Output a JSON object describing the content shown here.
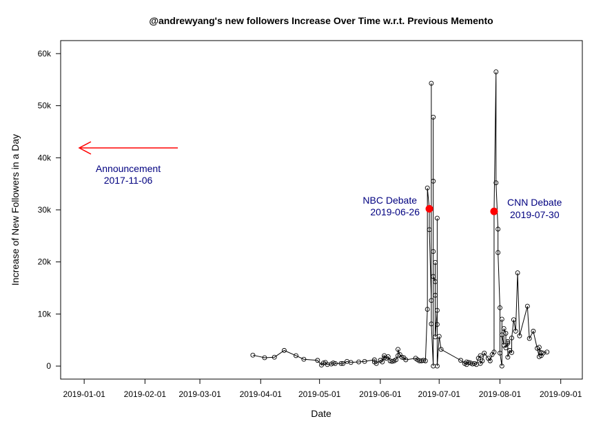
{
  "chart_data": {
    "type": "line",
    "title": "@andrewyang's new followers Increase Over Time w.r.t. Previous Memento",
    "xlabel": "Date",
    "ylabel": "Increase of New Followers in a Day",
    "x_axis": {
      "kind": "date",
      "range": [
        "2018-12-20",
        "2019-09-12"
      ],
      "ticks": [
        "2019-01-01",
        "2019-02-01",
        "2019-03-01",
        "2019-04-01",
        "2019-05-01",
        "2019-06-01",
        "2019-07-01",
        "2019-08-01",
        "2019-09-01"
      ]
    },
    "y_axis": {
      "range": [
        -2500,
        62500
      ],
      "ticks": [
        0,
        10000,
        20000,
        30000,
        40000,
        50000,
        60000
      ],
      "tick_labels": [
        "0",
        "10k",
        "20k",
        "30k",
        "40k",
        "50k",
        "60k"
      ]
    },
    "grid": false,
    "series": [
      {
        "marker": "open-circle",
        "color": "#000000",
        "points": [
          [
            "2019-03-28",
            2100
          ],
          [
            "2019-04-03",
            1600
          ],
          [
            "2019-04-08",
            1700
          ],
          [
            "2019-04-13",
            3000
          ],
          [
            "2019-04-19",
            2000
          ],
          [
            "2019-04-23",
            1300
          ],
          [
            "2019-04-30",
            1100
          ],
          [
            "2019-05-02",
            200
          ],
          [
            "2019-05-03",
            600
          ],
          [
            "2019-05-04",
            700
          ],
          [
            "2019-05-05",
            300
          ],
          [
            "2019-05-07",
            400
          ],
          [
            "2019-05-08",
            600
          ],
          [
            "2019-05-09",
            500
          ],
          [
            "2019-05-12",
            500
          ],
          [
            "2019-05-13",
            500
          ],
          [
            "2019-05-15",
            900
          ],
          [
            "2019-05-17",
            700
          ],
          [
            "2019-05-21",
            800
          ],
          [
            "2019-05-24",
            900
          ],
          [
            "2019-05-29",
            1200
          ],
          [
            "2019-05-29",
            800
          ],
          [
            "2019-05-30",
            500
          ],
          [
            "2019-06-01",
            1100
          ],
          [
            "2019-06-02",
            800
          ],
          [
            "2019-06-03",
            2000
          ],
          [
            "2019-06-03",
            1600
          ],
          [
            "2019-06-04",
            1500
          ],
          [
            "2019-06-05",
            1800
          ],
          [
            "2019-06-06",
            1000
          ],
          [
            "2019-06-07",
            900
          ],
          [
            "2019-06-08",
            1000
          ],
          [
            "2019-06-09",
            1200
          ],
          [
            "2019-06-10",
            2000
          ],
          [
            "2019-06-10",
            3200
          ],
          [
            "2019-06-11",
            2200
          ],
          [
            "2019-06-12",
            1700
          ],
          [
            "2019-06-13",
            1600
          ],
          [
            "2019-06-14",
            1200
          ],
          [
            "2019-06-19",
            1500
          ],
          [
            "2019-06-20",
            1200
          ],
          [
            "2019-06-21",
            1000
          ],
          [
            "2019-06-22",
            1000
          ],
          [
            "2019-06-23",
            1100
          ],
          [
            "2019-06-24",
            1000
          ],
          [
            "2019-06-25",
            10900
          ],
          [
            "2019-06-25",
            34200
          ],
          [
            "2019-06-26",
            30200
          ],
          [
            "2019-06-26",
            26200
          ],
          [
            "2019-06-27",
            12600
          ],
          [
            "2019-06-27",
            54300
          ],
          [
            "2019-06-27",
            8100
          ],
          [
            "2019-06-28",
            0
          ],
          [
            "2019-06-28",
            47800
          ],
          [
            "2019-06-28",
            35500
          ],
          [
            "2019-06-28",
            22000
          ],
          [
            "2019-06-28",
            17200
          ],
          [
            "2019-06-29",
            16200
          ],
          [
            "2019-06-29",
            19900
          ],
          [
            "2019-06-29",
            13600
          ],
          [
            "2019-06-29",
            5600
          ],
          [
            "2019-06-30",
            10700
          ],
          [
            "2019-06-30",
            28400
          ],
          [
            "2019-06-30",
            8000
          ],
          [
            "2019-06-30",
            0
          ],
          [
            "2019-07-01",
            5700
          ],
          [
            "2019-07-02",
            3200
          ],
          [
            "2019-07-12",
            1100
          ],
          [
            "2019-07-14",
            500
          ],
          [
            "2019-07-15",
            300
          ],
          [
            "2019-07-15",
            800
          ],
          [
            "2019-07-16",
            700
          ],
          [
            "2019-07-17",
            600
          ],
          [
            "2019-07-18",
            400
          ],
          [
            "2019-07-19",
            500
          ],
          [
            "2019-07-20",
            300
          ],
          [
            "2019-07-21",
            1500
          ],
          [
            "2019-07-22",
            2000
          ],
          [
            "2019-07-22",
            500
          ],
          [
            "2019-07-23",
            1000
          ],
          [
            "2019-07-24",
            2500
          ],
          [
            "2019-07-26",
            1500
          ],
          [
            "2019-07-27",
            1000
          ],
          [
            "2019-07-28",
            2200
          ],
          [
            "2019-07-29",
            2700
          ],
          [
            "2019-07-29",
            29700
          ],
          [
            "2019-07-30",
            56500
          ],
          [
            "2019-07-30",
            35200
          ],
          [
            "2019-07-31",
            26300
          ],
          [
            "2019-07-31",
            21800
          ],
          [
            "2019-08-01",
            11200
          ],
          [
            "2019-08-01",
            2500
          ],
          [
            "2019-08-02",
            0
          ],
          [
            "2019-08-02",
            9000
          ],
          [
            "2019-08-02",
            6000
          ],
          [
            "2019-08-03",
            4000
          ],
          [
            "2019-08-03",
            7200
          ],
          [
            "2019-08-04",
            6300
          ],
          [
            "2019-08-04",
            3500
          ],
          [
            "2019-08-05",
            4400
          ],
          [
            "2019-08-05",
            4700
          ],
          [
            "2019-08-05",
            1700
          ],
          [
            "2019-08-06",
            3000
          ],
          [
            "2019-08-07",
            2600
          ],
          [
            "2019-08-07",
            5400
          ],
          [
            "2019-08-08",
            8900
          ],
          [
            "2019-08-09",
            6700
          ],
          [
            "2019-08-10",
            17900
          ],
          [
            "2019-08-11",
            5800
          ],
          [
            "2019-08-15",
            11500
          ],
          [
            "2019-08-16",
            5300
          ],
          [
            "2019-08-18",
            6700
          ],
          [
            "2019-08-20",
            3400
          ],
          [
            "2019-08-21",
            1800
          ],
          [
            "2019-08-21",
            3600
          ],
          [
            "2019-08-22",
            2600
          ],
          [
            "2019-08-22",
            2000
          ],
          [
            "2019-08-23",
            2500
          ],
          [
            "2019-08-25",
            2700
          ]
        ]
      }
    ],
    "highlighted_points": [
      {
        "x": "2019-06-26",
        "y": 30200,
        "color": "#ff0000"
      },
      {
        "x": "2019-07-29",
        "y": 29700,
        "color": "#ff0000"
      }
    ],
    "annotations": [
      {
        "lines": [
          "Announcement",
          "2017-11-06"
        ],
        "color": "#000080",
        "arrow": "left",
        "arrow_color": "#ff0000"
      },
      {
        "lines": [
          "NBC Debate",
          "2019-06-26"
        ],
        "color": "#000080"
      },
      {
        "lines": [
          "CNN Debate",
          "2019-07-30"
        ],
        "color": "#000080"
      }
    ]
  }
}
